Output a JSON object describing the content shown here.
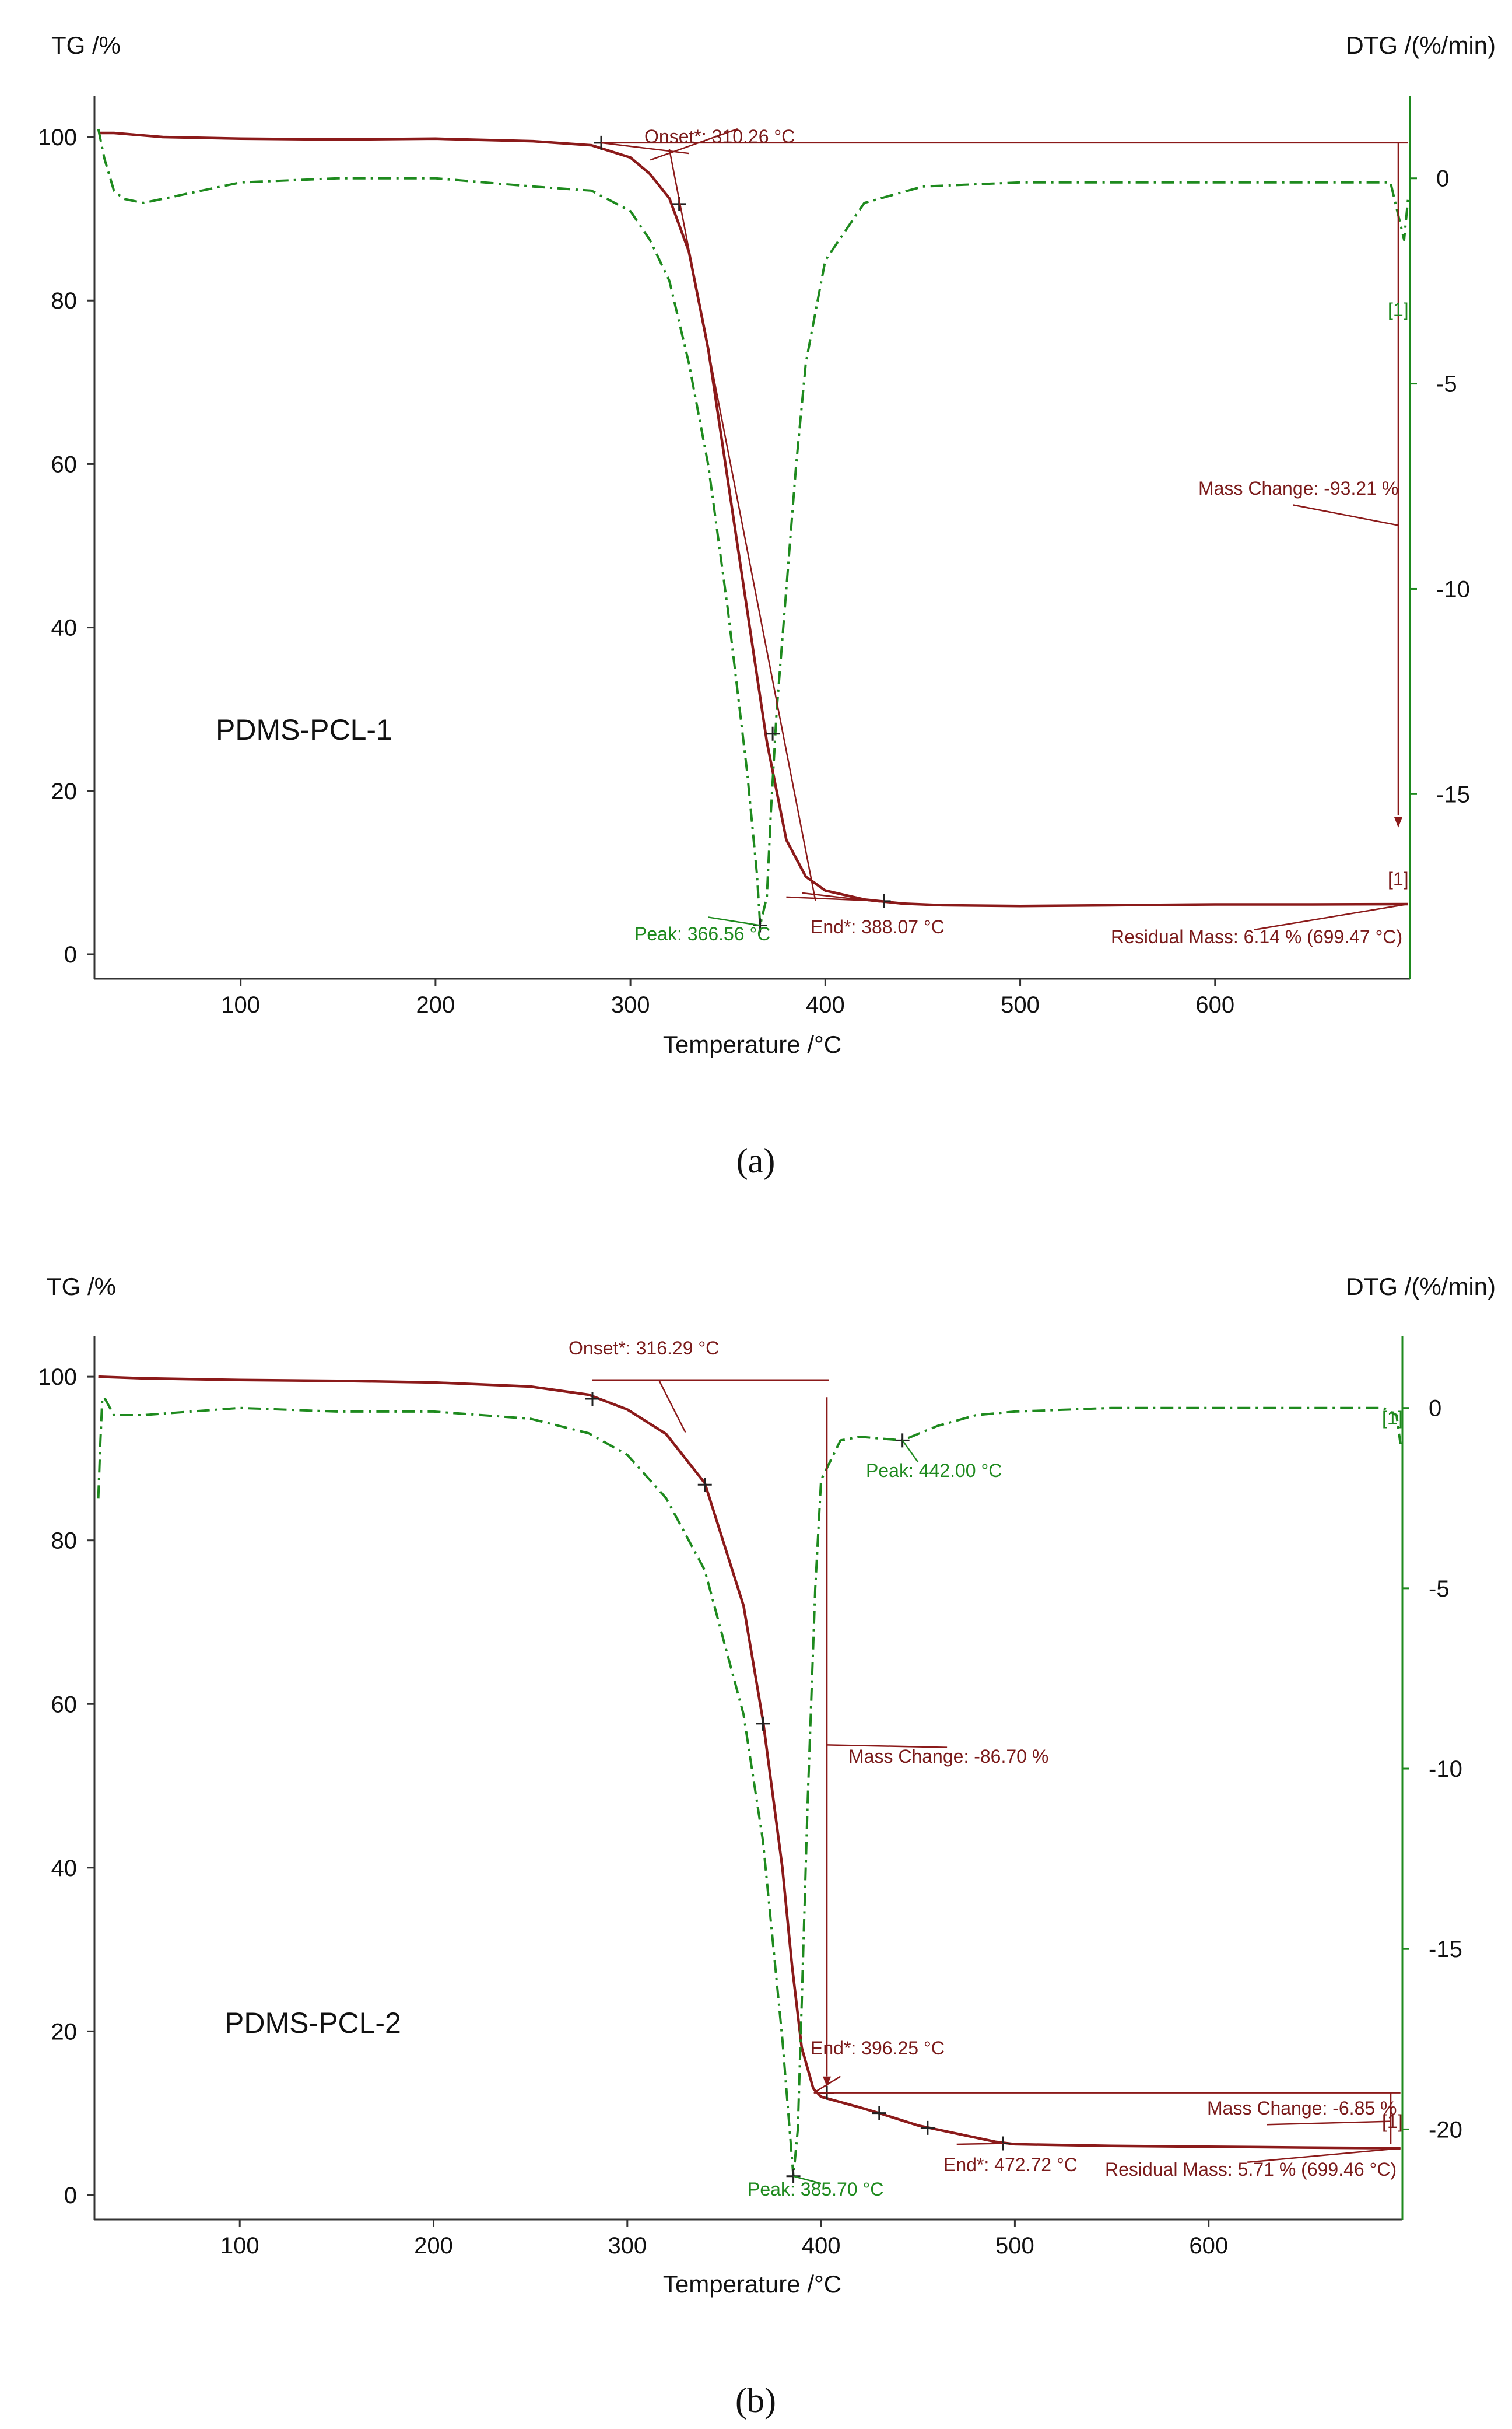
{
  "colors": {
    "tg": "#8b1a1a",
    "dtg": "#1e8a1e",
    "axis": "#333333",
    "dtg_axis": "#1e8a1e"
  },
  "chart_data": [
    {
      "type": "line",
      "panel": "a",
      "caption": "(a)",
      "xlabel": "Temperature /°C",
      "ylabel_left": "TG /%",
      "ylabel_right": "DTG /(%/min)",
      "xlim": [
        25,
        700
      ],
      "ylim_left": [
        -3,
        105
      ],
      "ylim_right": [
        -19.5,
        2
      ],
      "xticks": [
        100,
        200,
        300,
        400,
        500,
        600
      ],
      "yticks_left": [
        0,
        20,
        40,
        60,
        80,
        100
      ],
      "yticks_right": [
        0,
        -5,
        -10,
        -15
      ],
      "sample_label": "PDMS-PCL-1",
      "series": [
        {
          "name": "TG",
          "axis": "left",
          "style": "solid",
          "x": [
            27,
            35,
            60,
            100,
            150,
            200,
            250,
            280,
            300,
            310,
            320,
            330,
            340,
            350,
            360,
            370,
            380,
            390,
            400,
            420,
            440,
            460,
            500,
            550,
            600,
            650,
            699
          ],
          "y": [
            100.5,
            100.5,
            100.0,
            99.8,
            99.7,
            99.8,
            99.5,
            99.0,
            97.5,
            95.5,
            92.5,
            86,
            74,
            58,
            42,
            26,
            14,
            9.5,
            7.8,
            6.7,
            6.2,
            6.0,
            5.9,
            6.0,
            6.1,
            6.1,
            6.14
          ]
        },
        {
          "name": "DTG",
          "axis": "right",
          "style": "dashdot",
          "x": [
            27,
            30,
            35,
            40,
            50,
            70,
            100,
            150,
            200,
            250,
            280,
            300,
            310,
            320,
            330,
            340,
            350,
            360,
            365,
            366.56,
            370,
            372,
            375,
            380,
            385,
            390,
            400,
            420,
            450,
            500,
            600,
            690,
            697,
            699
          ],
          "y": [
            1.2,
            0.5,
            -0.3,
            -0.5,
            -0.6,
            -0.4,
            -0.1,
            0,
            0,
            -0.2,
            -0.3,
            -0.8,
            -1.5,
            -2.5,
            -4.5,
            -7,
            -10.5,
            -14.5,
            -17,
            -18.2,
            -17.5,
            -15.5,
            -13,
            -10,
            -7,
            -4.5,
            -2,
            -0.6,
            -0.2,
            -0.1,
            -0.1,
            -0.1,
            -1.5,
            -0.5
          ]
        }
      ],
      "markers_tg": [
        [
          285,
          99.3
        ],
        [
          325,
          91.8
        ],
        [
          373,
          27.0
        ],
        [
          430,
          6.5
        ]
      ],
      "markers_dtg": [
        [
          366.56,
          -18.2
        ]
      ],
      "annotations": {
        "onset": "Onset*: 310.26 °C",
        "end": "End*: 388.07 °C",
        "peak": "Peak: 366.56 °C",
        "mass_change": "Mass Change: -93.21 %",
        "residual": "Residual Mass: 6.14 % (699.47 °C)",
        "bracket_dtg": "[1]",
        "bracket_tg": "[1]"
      }
    },
    {
      "type": "line",
      "panel": "b",
      "caption": "(b)",
      "xlabel": "Temperature /°C",
      "ylabel_left": "TG /%",
      "ylabel_right": "DTG /(%/min)",
      "xlim": [
        25,
        700
      ],
      "ylim_left": [
        -3,
        105
      ],
      "ylim_right": [
        -22.5,
        2
      ],
      "xticks": [
        100,
        200,
        300,
        400,
        500,
        600
      ],
      "yticks_left": [
        0,
        20,
        40,
        60,
        80,
        100
      ],
      "yticks_right": [
        0,
        -5,
        -10,
        -15,
        -20
      ],
      "sample_label": "PDMS-PCL-2",
      "series": [
        {
          "name": "TG",
          "axis": "left",
          "style": "solid",
          "x": [
            27,
            50,
            100,
            150,
            200,
            250,
            280,
            300,
            320,
            340,
            360,
            370,
            380,
            385,
            390,
            396,
            400,
            420,
            430,
            450,
            470,
            490,
            500,
            550,
            600,
            650,
            699
          ],
          "y": [
            100,
            99.8,
            99.6,
            99.5,
            99.3,
            98.8,
            97.8,
            96.0,
            93.0,
            87.0,
            72.0,
            58.0,
            40.0,
            28.0,
            18.0,
            13.0,
            12.0,
            10.7,
            10.0,
            8.5,
            7.5,
            6.5,
            6.2,
            6.0,
            5.9,
            5.8,
            5.71
          ]
        },
        {
          "name": "DTG",
          "axis": "right",
          "style": "dashdot",
          "x": [
            27,
            28,
            29,
            30,
            35,
            50,
            100,
            150,
            200,
            250,
            280,
            300,
            320,
            340,
            360,
            370,
            380,
            385.7,
            388,
            390,
            393,
            397,
            400,
            410,
            420,
            442,
            460,
            480,
            500,
            550,
            600,
            650,
            690,
            697,
            699
          ],
          "y": [
            -2.5,
            -1.0,
            0.2,
            0.3,
            -0.2,
            -0.2,
            0,
            -0.1,
            -0.1,
            -0.3,
            -0.7,
            -1.3,
            -2.5,
            -4.5,
            -8.5,
            -12,
            -17.5,
            -21.3,
            -20,
            -16.5,
            -11,
            -5,
            -2,
            -0.9,
            -0.8,
            -0.9,
            -0.5,
            -0.2,
            -0.1,
            0,
            0,
            0,
            0,
            -0.2,
            -1.0
          ]
        }
      ],
      "markers_tg": [
        [
          282,
          97.3
        ],
        [
          340,
          86.8
        ],
        [
          370,
          57.6
        ],
        [
          403,
          12.5
        ],
        [
          430,
          10.0
        ],
        [
          455,
          8.2
        ],
        [
          494,
          6.3
        ]
      ],
      "markers_dtg": [
        [
          385.7,
          -21.3
        ],
        [
          442,
          -0.9
        ]
      ],
      "annotations": {
        "onset": "Onset*: 316.29 °C",
        "end1": "End*: 396.25 °C",
        "end2": "End*: 472.72 °C",
        "peak1": "Peak: 385.70 °C",
        "peak2": "Peak: 442.00 °C",
        "mass_change1": "Mass Change: -86.70 %",
        "mass_change2": "Mass Change: -6.85 %",
        "residual": "Residual Mass: 5.71 % (699.46 °C)",
        "bracket_dtg": "[1]",
        "bracket_tg": "[1]"
      }
    }
  ]
}
